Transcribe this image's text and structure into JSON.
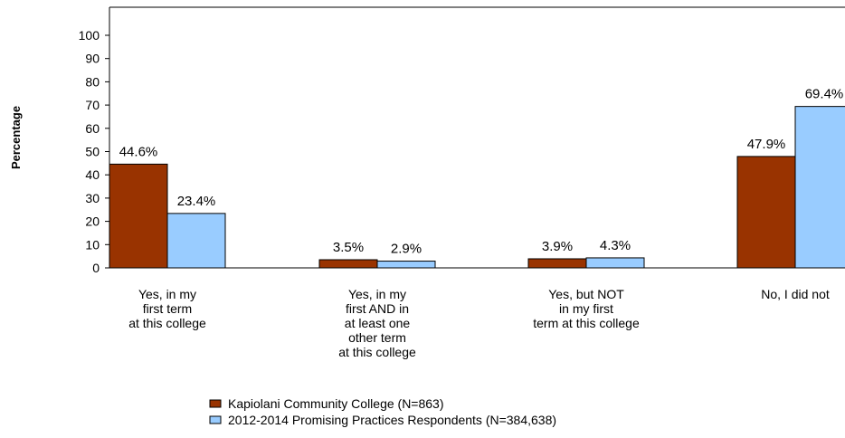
{
  "chart_data": {
    "type": "bar",
    "ylabel": "Percentage",
    "ylim": [
      0,
      100
    ],
    "yticks": [
      0,
      10,
      20,
      30,
      40,
      50,
      60,
      70,
      80,
      90,
      100
    ],
    "categories": [
      [
        "Yes, in my",
        "first term",
        "at this college"
      ],
      [
        "Yes, in my",
        "first AND in",
        "at least one",
        "other term",
        "at this college"
      ],
      [
        "Yes, but NOT",
        "in my first",
        "term at this college"
      ],
      [
        "No, I did not"
      ]
    ],
    "series": [
      {
        "name": "Kapiolani Community College (N=863)",
        "color": "#993300",
        "values": [
          44.6,
          3.5,
          3.9,
          47.9
        ],
        "labels": [
          "44.6%",
          "3.5%",
          "3.9%",
          "47.9%"
        ]
      },
      {
        "name": "2012-2014 Promising Practices Respondents (N=384,638)",
        "color": "#99ccff",
        "values": [
          23.4,
          2.9,
          4.3,
          69.4
        ],
        "labels": [
          "23.4%",
          "2.9%",
          "4.3%",
          "69.4%"
        ]
      }
    ],
    "legend_position": "bottom",
    "grid": false
  }
}
